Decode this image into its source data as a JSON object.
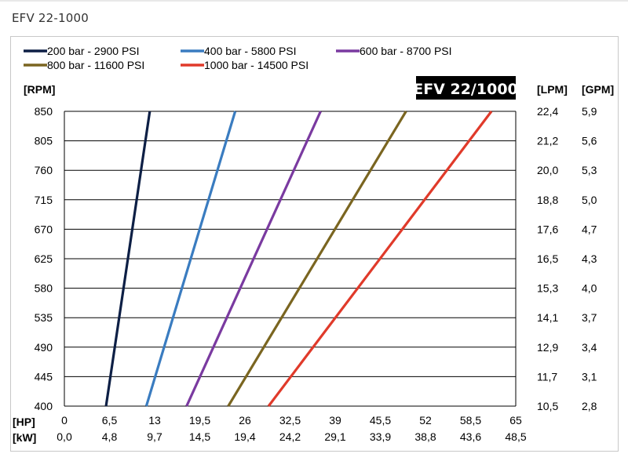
{
  "header": {
    "title": "EFV 22-1000"
  },
  "chart_data": {
    "type": "line",
    "badge": "EFV 22/1000",
    "units": {
      "rpm": "[RPM]",
      "lpm": "[LPM]",
      "gpm": "[GPM]",
      "hp": "[HP]",
      "kw": "[kW]"
    },
    "y_ticks_rpm": [
      "850",
      "805",
      "760",
      "715",
      "670",
      "625",
      "580",
      "535",
      "490",
      "445",
      "400"
    ],
    "y_ticks_lpm": [
      "22,4",
      "21,2",
      "20,0",
      "18,8",
      "17,6",
      "16,5",
      "15,3",
      "14,1",
      "12,9",
      "11,7",
      "10,5"
    ],
    "y_ticks_gpm": [
      "5,9",
      "5,6",
      "5,3",
      "5,0",
      "4,7",
      "4,3",
      "4,0",
      "3,7",
      "3,4",
      "3,1",
      "2,8"
    ],
    "x_ticks_hp": [
      "0",
      "6,5",
      "13",
      "19,5",
      "26",
      "32,5",
      "39",
      "45,5",
      "52",
      "58,5",
      "65"
    ],
    "x_ticks_kw": [
      "0,0",
      "4,8",
      "9,7",
      "14,5",
      "19,4",
      "24,2",
      "29,1",
      "33,9",
      "38,8",
      "43,6",
      "48,5"
    ],
    "xlim": [
      0,
      65
    ],
    "ylim": [
      400,
      850
    ],
    "grid": "horizontal",
    "legend_position": "top",
    "series": [
      {
        "name": "200 bar - 2900 PSI",
        "color": "#0d1f45",
        "points": [
          [
            6.0,
            400
          ],
          [
            12.3,
            850
          ]
        ]
      },
      {
        "name": "400 bar - 5800 PSI",
        "color": "#3a7cc0",
        "points": [
          [
            11.8,
            400
          ],
          [
            24.6,
            850
          ]
        ]
      },
      {
        "name": "600 bar - 8700 PSI",
        "color": "#7a3aa0",
        "points": [
          [
            17.6,
            400
          ],
          [
            36.9,
            850
          ]
        ]
      },
      {
        "name": "800 bar - 11600 PSI",
        "color": "#7a6520",
        "points": [
          [
            23.6,
            400
          ],
          [
            49.2,
            850
          ]
        ]
      },
      {
        "name": "1000 bar - 14500 PSI",
        "color": "#e03a2a",
        "points": [
          [
            29.4,
            400
          ],
          [
            61.5,
            850
          ]
        ]
      }
    ]
  }
}
